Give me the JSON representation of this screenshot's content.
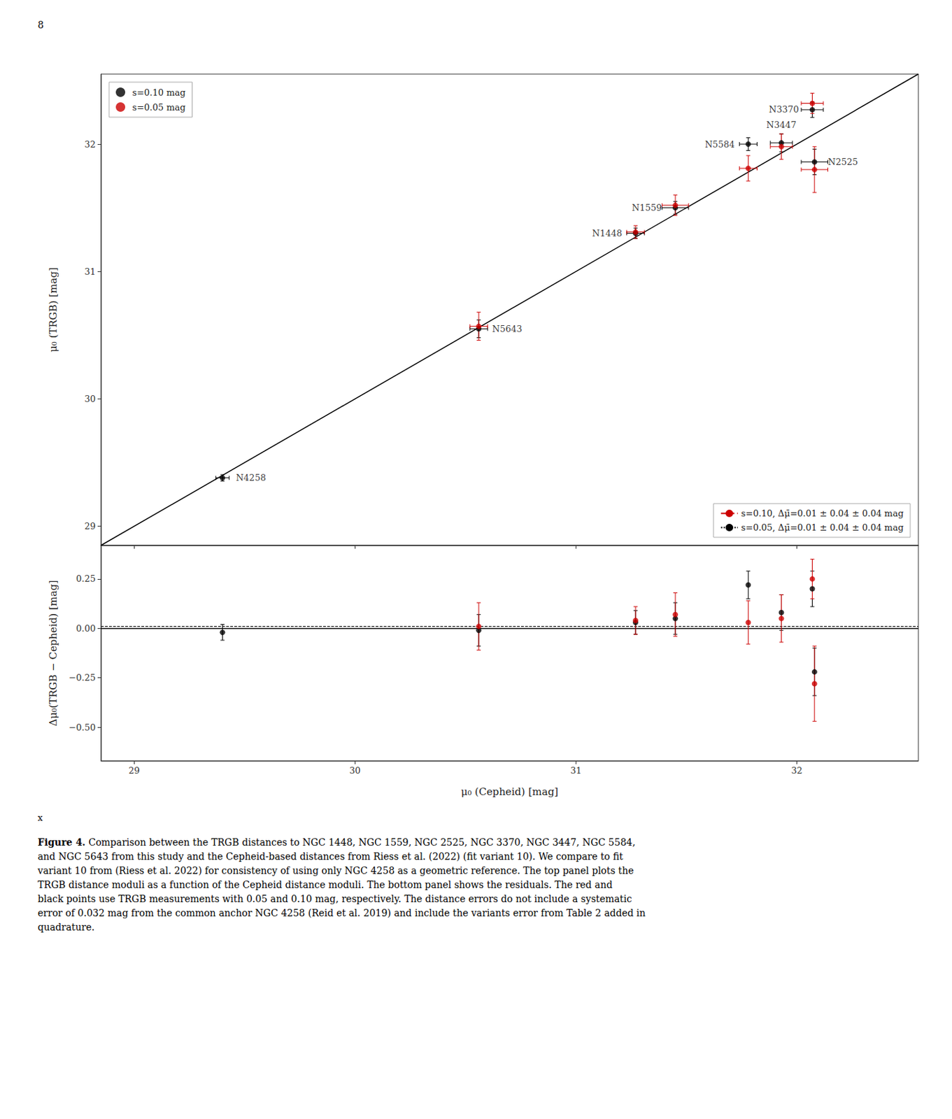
{
  "chart_data": [
    {
      "type": "scatter",
      "ylabel": "μ₀ (TRGB) [mag]",
      "xlim": [
        28.85,
        32.55
      ],
      "xticks": [
        29,
        30,
        31,
        32
      ],
      "ylim": [
        28.85,
        32.55
      ],
      "yticks": [
        29,
        30,
        31,
        32
      ],
      "tick_labels": "y",
      "grid": false,
      "legend": "upper left",
      "series": [
        {
          "name": "s=0.10 mag",
          "type": "scatter",
          "color": "black",
          "marker": "circle",
          "x": [
            29.4,
            30.56,
            31.27,
            31.45,
            31.78,
            31.93,
            32.07,
            32.08
          ],
          "values": [
            29.38,
            30.55,
            31.3,
            31.5,
            32.0,
            32.01,
            32.27,
            31.86
          ],
          "xerr": [
            0.03,
            0.04,
            0.04,
            0.06,
            0.04,
            0.05,
            0.05,
            0.06
          ],
          "yerr": [
            0.025,
            0.07,
            0.04,
            0.05,
            0.05,
            0.07,
            0.06,
            0.1
          ]
        },
        {
          "name": "s=0.05 mag",
          "type": "scatter",
          "color": "#cc0000",
          "marker": "circle",
          "x": [
            29.4,
            30.56,
            31.27,
            31.45,
            31.78,
            31.93,
            32.07,
            32.08
          ],
          "values": [
            null,
            30.57,
            31.31,
            31.52,
            31.81,
            31.98,
            32.32,
            31.8
          ],
          "xerr": [
            null,
            0.04,
            0.04,
            0.06,
            0.04,
            0.05,
            0.05,
            0.06
          ],
          "yerr": [
            null,
            0.11,
            0.05,
            0.08,
            0.1,
            0.1,
            0.08,
            0.18
          ]
        },
        {
          "name": "s=0.10, Δμ̄=0.01 ± 0.04 ± 0.04 mag",
          "type": "line",
          "color": "#cc0000",
          "line_style": "dashed",
          "legend": "lower right"
        },
        {
          "name": "s=0.05, Δμ̄=0.01 ± 0.04 ± 0.04 mag",
          "type": "line",
          "color": "black",
          "line_style": "dotted",
          "legend": "lower right"
        }
      ],
      "reference_lines": [
        {
          "x": [
            28.85,
            32.55
          ],
          "values": [
            28.85,
            32.55
          ],
          "color": "black",
          "line_style": "solid"
        }
      ],
      "annotations": [
        {
          "text": "N4258",
          "x": 29.4,
          "y": 29.38
        },
        {
          "text": "N5643",
          "x": 30.56,
          "y": 30.55
        },
        {
          "text": "N1448",
          "x": 31.27,
          "y": 31.3
        },
        {
          "text": "N1559",
          "x": 31.45,
          "y": 31.5
        },
        {
          "text": "N5584",
          "x": 31.78,
          "y": 32.0
        },
        {
          "text": "N3447",
          "x": 31.93,
          "y": 32.01
        },
        {
          "text": "N3370",
          "x": 32.07,
          "y": 32.27
        },
        {
          "text": "N2525",
          "x": 32.08,
          "y": 31.86
        }
      ],
      "page_label": "8"
    },
    {
      "type": "scatter",
      "xlabel": "μ₀ (Cepheid) [mag]",
      "ylabel": "Δμ₀(TRGB − Cepheid) [mag]",
      "xlim": [
        28.85,
        32.55
      ],
      "xticks": [
        29,
        30,
        31,
        32
      ],
      "ylim": [
        -0.67,
        0.42
      ],
      "yticks": [
        {
          "value": -0.5,
          "label": "−0.50"
        },
        {
          "value": -0.25,
          "label": "−0.25"
        },
        {
          "value": 0,
          "label": "0.00"
        },
        0.25
      ],
      "grid": false,
      "series": [
        {
          "name": "s=0.10 mag",
          "type": "scatter",
          "color": "black",
          "marker": "circle",
          "x": [
            29.4,
            30.56,
            31.27,
            31.45,
            31.78,
            31.93,
            32.07,
            32.08
          ],
          "values": [
            -0.02,
            -0.01,
            0.03,
            0.05,
            0.22,
            0.08,
            0.2,
            -0.22
          ],
          "yerr": [
            0.04,
            0.08,
            0.06,
            0.08,
            0.07,
            0.09,
            0.09,
            0.12
          ]
        },
        {
          "name": "s=0.05 mag",
          "type": "scatter",
          "color": "#cc0000",
          "marker": "circle",
          "x": [
            29.4,
            30.56,
            31.27,
            31.45,
            31.78,
            31.93,
            32.07,
            32.08
          ],
          "values": [
            null,
            0.01,
            0.04,
            0.07,
            0.03,
            0.05,
            0.25,
            -0.28
          ],
          "yerr": [
            null,
            0.12,
            0.07,
            0.11,
            0.11,
            0.12,
            0.1,
            0.19
          ]
        }
      ],
      "reference_lines": [
        {
          "y": 0.0,
          "color": "black",
          "line_style": "solid"
        },
        {
          "y": 0.01,
          "color": "black",
          "line_style": "dashed"
        }
      ],
      "marker_text": "x",
      "caption_title": "Figure 4.",
      "caption": " Comparison between the TRGB distances to NGC 1448, NGC 1559, NGC 2525, NGC 3370, NGC 3447, NGC 5584,\nand NGC 5643 from this study and the Cepheid-based distances from Riess et al. (2022) (fit variant 10). We compare to fit\nvariant 10 from (Riess et al. 2022) for consistency of using only NGC 4258 as a geometric reference. The top panel plots the\nTRGB distance moduli as a function of the Cepheid distance moduli. The bottom panel shows the residuals. The red and\nblack points use TRGB measurements with 0.05 and 0.10 mag, respectively. The distance errors do not include a systematic\nerror of 0.032 mag from the common anchor NGC 4258 (Reid et al. 2019) and include the variants error from Table 2 added in\nquadrature."
    }
  ]
}
